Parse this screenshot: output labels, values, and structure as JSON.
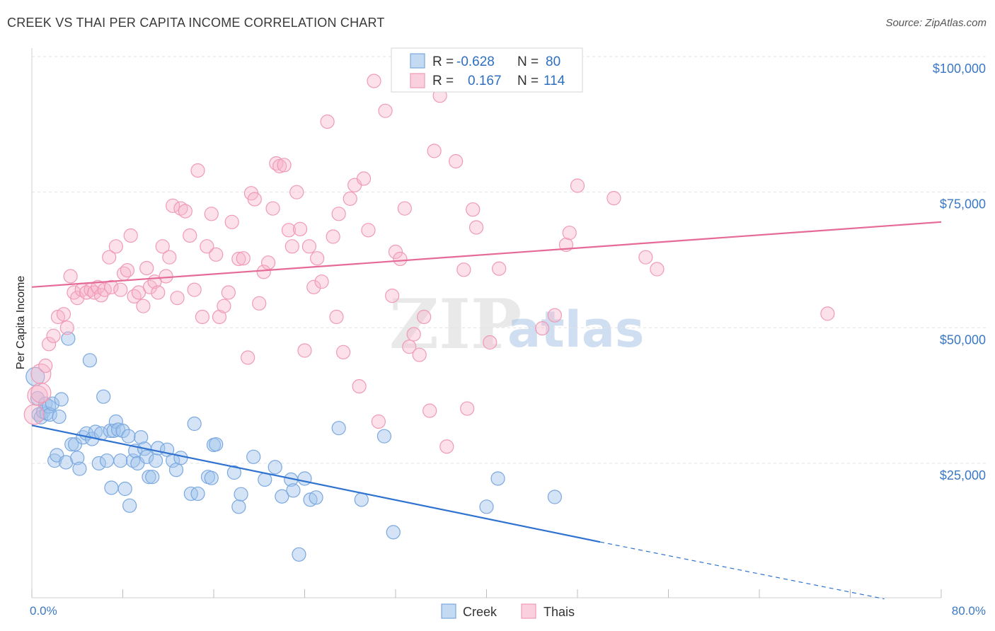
{
  "header": {
    "title": "CREEK VS THAI PER CAPITA INCOME CORRELATION CHART",
    "source": "Source: ZipAtlas.com"
  },
  "legend": {
    "r_label": "R =",
    "n_label": "N =",
    "series": [
      {
        "name": "Creek",
        "r": "-0.628",
        "n": "80",
        "color": "#7aa8e0"
      },
      {
        "name": "Thais",
        "r": "0.167",
        "n": "114",
        "color": "#f09ab5"
      }
    ]
  },
  "watermark": {
    "zip": "ZIP",
    "atlas": "atlas"
  },
  "chart_data": {
    "type": "scatter",
    "xlabel": "",
    "ylabel": "Per Capita Income",
    "xlim": [
      0,
      80
    ],
    "ylim": [
      0,
      102000
    ],
    "x_tick_labels": [
      "0.0%",
      "80.0%"
    ],
    "y_ticks": [
      {
        "value": 25000,
        "label": "$25,000"
      },
      {
        "value": 50000,
        "label": "$50,000"
      },
      {
        "value": 75000,
        "label": "$75,000"
      },
      {
        "value": 100000,
        "label": "$100,000"
      }
    ],
    "grid": true,
    "series": [
      {
        "name": "Creek",
        "color": "#7aa8e0",
        "trend": {
          "x0": 0,
          "y0": 32000,
          "x1": 50,
          "y1": 10500,
          "x_dash_end": 75,
          "y_dash_end": 0
        },
        "points": [
          [
            0.3,
            41000
          ],
          [
            0.5,
            37000
          ],
          [
            0.6,
            34000
          ],
          [
            0.8,
            33500
          ],
          [
            1.0,
            34500
          ],
          [
            1.2,
            36000
          ],
          [
            1.3,
            34200
          ],
          [
            1.5,
            35500
          ],
          [
            1.6,
            34000
          ],
          [
            1.8,
            36000
          ],
          [
            2.0,
            25500
          ],
          [
            2.2,
            26500
          ],
          [
            2.4,
            33600
          ],
          [
            2.6,
            36800
          ],
          [
            3.0,
            25200
          ],
          [
            3.2,
            48000
          ],
          [
            3.5,
            28500
          ],
          [
            3.8,
            28500
          ],
          [
            4.0,
            26000
          ],
          [
            4.2,
            24000
          ],
          [
            4.5,
            29800
          ],
          [
            4.8,
            30500
          ],
          [
            5.1,
            44000
          ],
          [
            5.3,
            29500
          ],
          [
            5.6,
            30800
          ],
          [
            5.9,
            25000
          ],
          [
            6.1,
            30500
          ],
          [
            6.3,
            37300
          ],
          [
            6.6,
            25500
          ],
          [
            6.9,
            31000
          ],
          [
            7.0,
            20500
          ],
          [
            7.2,
            31000
          ],
          [
            7.4,
            32700
          ],
          [
            7.6,
            31200
          ],
          [
            7.8,
            25500
          ],
          [
            8.0,
            31000
          ],
          [
            8.2,
            20300
          ],
          [
            8.5,
            30000
          ],
          [
            8.6,
            17200
          ],
          [
            8.9,
            25500
          ],
          [
            9.1,
            27300
          ],
          [
            9.3,
            25000
          ],
          [
            9.6,
            29800
          ],
          [
            9.9,
            27700
          ],
          [
            10.1,
            26200
          ],
          [
            10.3,
            22500
          ],
          [
            10.6,
            22500
          ],
          [
            10.9,
            25500
          ],
          [
            11.1,
            27800
          ],
          [
            11.9,
            27500
          ],
          [
            12.4,
            25500
          ],
          [
            12.7,
            23800
          ],
          [
            13.1,
            26000
          ],
          [
            14.0,
            19400
          ],
          [
            14.3,
            32300
          ],
          [
            14.6,
            19400
          ],
          [
            15.5,
            22500
          ],
          [
            15.8,
            22300
          ],
          [
            16.0,
            28400
          ],
          [
            16.2,
            28500
          ],
          [
            17.8,
            23300
          ],
          [
            18.2,
            17000
          ],
          [
            18.4,
            19300
          ],
          [
            19.5,
            26200
          ],
          [
            20.5,
            22000
          ],
          [
            21.4,
            24300
          ],
          [
            22.0,
            18900
          ],
          [
            22.8,
            22000
          ],
          [
            23.0,
            20000
          ],
          [
            23.5,
            8200
          ],
          [
            24.0,
            22200
          ],
          [
            24.5,
            18300
          ],
          [
            25.0,
            18700
          ],
          [
            27.0,
            31500
          ],
          [
            29.0,
            18300
          ],
          [
            31.0,
            30000
          ],
          [
            31.8,
            12300
          ],
          [
            40.0,
            17000
          ],
          [
            41.0,
            22200
          ],
          [
            46.0,
            18800
          ]
        ]
      },
      {
        "name": "Thais",
        "color": "#f09ab5",
        "trend": {
          "x0": 0,
          "y0": 57500,
          "x1": 80,
          "y1": 69500
        },
        "points": [
          [
            0.2,
            34000
          ],
          [
            0.5,
            37500
          ],
          [
            0.8,
            41500
          ],
          [
            1.2,
            43000
          ],
          [
            1.5,
            47000
          ],
          [
            1.9,
            48500
          ],
          [
            2.3,
            52000
          ],
          [
            2.8,
            52500
          ],
          [
            3.1,
            50000
          ],
          [
            3.4,
            59500
          ],
          [
            3.7,
            56500
          ],
          [
            4.0,
            55500
          ],
          [
            4.4,
            57000
          ],
          [
            4.8,
            56500
          ],
          [
            5.2,
            57000
          ],
          [
            5.5,
            56500
          ],
          [
            5.8,
            57500
          ],
          [
            6.1,
            56000
          ],
          [
            6.4,
            57000
          ],
          [
            6.8,
            63000
          ],
          [
            7.0,
            57500
          ],
          [
            7.4,
            65000
          ],
          [
            7.8,
            57000
          ],
          [
            8.1,
            60000
          ],
          [
            8.4,
            60600
          ],
          [
            8.7,
            67000
          ],
          [
            9.0,
            55800
          ],
          [
            9.4,
            56500
          ],
          [
            9.8,
            54000
          ],
          [
            10.1,
            61000
          ],
          [
            10.4,
            57500
          ],
          [
            10.8,
            58500
          ],
          [
            11.1,
            56500
          ],
          [
            11.5,
            65000
          ],
          [
            11.8,
            59500
          ],
          [
            12.1,
            63000
          ],
          [
            12.4,
            72500
          ],
          [
            12.8,
            55500
          ],
          [
            13.1,
            72000
          ],
          [
            13.5,
            71500
          ],
          [
            13.9,
            67000
          ],
          [
            14.3,
            57000
          ],
          [
            14.6,
            79000
          ],
          [
            15.0,
            52000
          ],
          [
            15.4,
            65000
          ],
          [
            15.8,
            71000
          ],
          [
            16.2,
            63500
          ],
          [
            16.5,
            52000
          ],
          [
            16.9,
            54000
          ],
          [
            17.3,
            56500
          ],
          [
            17.6,
            69500
          ],
          [
            18.2,
            62700
          ],
          [
            18.6,
            62800
          ],
          [
            19.0,
            44500
          ],
          [
            19.3,
            74800
          ],
          [
            19.6,
            73700
          ],
          [
            20.0,
            54500
          ],
          [
            20.4,
            60300
          ],
          [
            20.8,
            62000
          ],
          [
            21.2,
            72000
          ],
          [
            21.5,
            80300
          ],
          [
            21.8,
            79800
          ],
          [
            22.2,
            80000
          ],
          [
            22.6,
            68000
          ],
          [
            22.9,
            65000
          ],
          [
            23.3,
            75000
          ],
          [
            23.6,
            68200
          ],
          [
            24.0,
            45800
          ],
          [
            24.4,
            65000
          ],
          [
            24.8,
            57500
          ],
          [
            25.1,
            62800
          ],
          [
            25.5,
            58500
          ],
          [
            26.0,
            88000
          ],
          [
            26.5,
            66800
          ],
          [
            26.8,
            52000
          ],
          [
            27.0,
            71000
          ],
          [
            27.4,
            45500
          ],
          [
            28.0,
            73800
          ],
          [
            28.4,
            76300
          ],
          [
            28.8,
            39200
          ],
          [
            29.2,
            77500
          ],
          [
            29.6,
            68000
          ],
          [
            30.1,
            95500
          ],
          [
            30.5,
            32700
          ],
          [
            31.1,
            90000
          ],
          [
            31.7,
            55900
          ],
          [
            32.0,
            64000
          ],
          [
            32.4,
            62700
          ],
          [
            32.8,
            72000
          ],
          [
            33.2,
            46500
          ],
          [
            33.6,
            48800
          ],
          [
            34.1,
            45000
          ],
          [
            34.5,
            52000
          ],
          [
            35.0,
            34700
          ],
          [
            35.4,
            82600
          ],
          [
            35.9,
            92800
          ],
          [
            36.5,
            28100
          ],
          [
            37.3,
            80700
          ],
          [
            38.0,
            60700
          ],
          [
            38.3,
            35100
          ],
          [
            38.8,
            71800
          ],
          [
            39.1,
            68500
          ],
          [
            40.3,
            47300
          ],
          [
            41.1,
            60900
          ],
          [
            44.9,
            49900
          ],
          [
            46.0,
            52300
          ],
          [
            47.0,
            65300
          ],
          [
            47.3,
            67500
          ],
          [
            48.0,
            76200
          ],
          [
            51.2,
            73900
          ],
          [
            54.0,
            63000
          ],
          [
            55.0,
            60800
          ],
          [
            70.0,
            52600
          ],
          [
            0.8,
            38000
          ]
        ]
      }
    ]
  }
}
